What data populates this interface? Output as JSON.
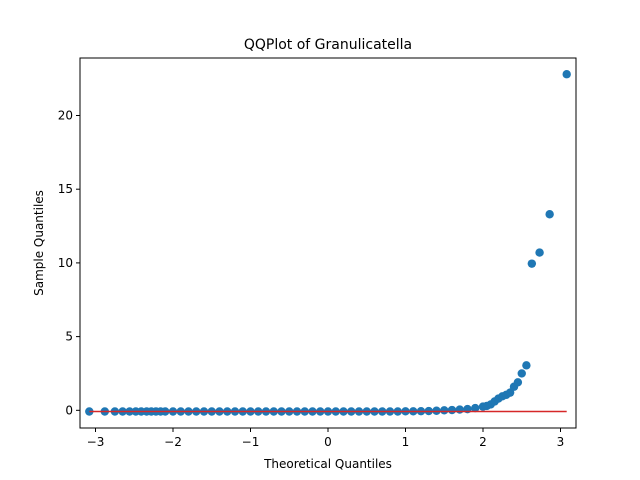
{
  "chart_data": {
    "type": "scatter",
    "title": "QQPlot of Granulicatella",
    "xlabel": "Theoretical Quantiles",
    "ylabel": "Sample Quantiles",
    "xlim": [
      -3.2,
      3.2
    ],
    "ylim": [
      -1.2,
      23.9
    ],
    "x_ticks": [
      -3,
      -2,
      -1,
      0,
      1,
      2,
      3
    ],
    "y_ticks": [
      0,
      5,
      10,
      15,
      20
    ],
    "grid": false,
    "legend": "none",
    "series": [
      {
        "color": "#1f77b4",
        "points": [
          [
            -3.08,
            -0.08
          ],
          [
            -2.88,
            -0.08
          ],
          [
            -2.75,
            -0.08
          ],
          [
            -2.65,
            -0.08
          ],
          [
            -2.56,
            -0.08
          ],
          [
            -2.48,
            -0.08
          ],
          [
            -2.41,
            -0.08
          ],
          [
            -2.34,
            -0.08
          ],
          [
            -2.28,
            -0.08
          ],
          [
            -2.22,
            -0.08
          ],
          [
            -2.16,
            -0.08
          ],
          [
            -2.1,
            -0.08
          ],
          [
            -2.0,
            -0.08
          ],
          [
            -1.9,
            -0.08
          ],
          [
            -1.8,
            -0.08
          ],
          [
            -1.7,
            -0.08
          ],
          [
            -1.6,
            -0.08
          ],
          [
            -1.5,
            -0.08
          ],
          [
            -1.4,
            -0.08
          ],
          [
            -1.3,
            -0.08
          ],
          [
            -1.2,
            -0.08
          ],
          [
            -1.1,
            -0.08
          ],
          [
            -1.0,
            -0.08
          ],
          [
            -0.9,
            -0.08
          ],
          [
            -0.8,
            -0.08
          ],
          [
            -0.7,
            -0.08
          ],
          [
            -0.6,
            -0.08
          ],
          [
            -0.5,
            -0.08
          ],
          [
            -0.4,
            -0.08
          ],
          [
            -0.3,
            -0.08
          ],
          [
            -0.2,
            -0.08
          ],
          [
            -0.1,
            -0.08
          ],
          [
            0.0,
            -0.08
          ],
          [
            0.1,
            -0.08
          ],
          [
            0.2,
            -0.08
          ],
          [
            0.3,
            -0.08
          ],
          [
            0.4,
            -0.08
          ],
          [
            0.5,
            -0.08
          ],
          [
            0.6,
            -0.08
          ],
          [
            0.7,
            -0.08
          ],
          [
            0.8,
            -0.08
          ],
          [
            0.9,
            -0.08
          ],
          [
            1.0,
            -0.07
          ],
          [
            1.1,
            -0.07
          ],
          [
            1.2,
            -0.06
          ],
          [
            1.3,
            -0.05
          ],
          [
            1.4,
            -0.03
          ],
          [
            1.5,
            0.0
          ],
          [
            1.6,
            0.02
          ],
          [
            1.7,
            0.05
          ],
          [
            1.8,
            0.08
          ],
          [
            1.9,
            0.15
          ],
          [
            2.0,
            0.25
          ],
          [
            2.05,
            0.3
          ],
          [
            2.1,
            0.4
          ],
          [
            2.15,
            0.6
          ],
          [
            2.2,
            0.8
          ],
          [
            2.25,
            0.95
          ],
          [
            2.3,
            1.05
          ],
          [
            2.35,
            1.2
          ],
          [
            2.4,
            1.6
          ],
          [
            2.45,
            1.9
          ],
          [
            2.5,
            2.5
          ],
          [
            2.56,
            3.05
          ],
          [
            2.63,
            9.95
          ],
          [
            2.73,
            10.7
          ],
          [
            2.86,
            13.3
          ],
          [
            3.08,
            22.8
          ]
        ]
      }
    ],
    "reference_line": {
      "color": "#d62728",
      "x": [
        -3.08,
        3.08
      ],
      "y": [
        -0.08,
        -0.08
      ]
    }
  }
}
